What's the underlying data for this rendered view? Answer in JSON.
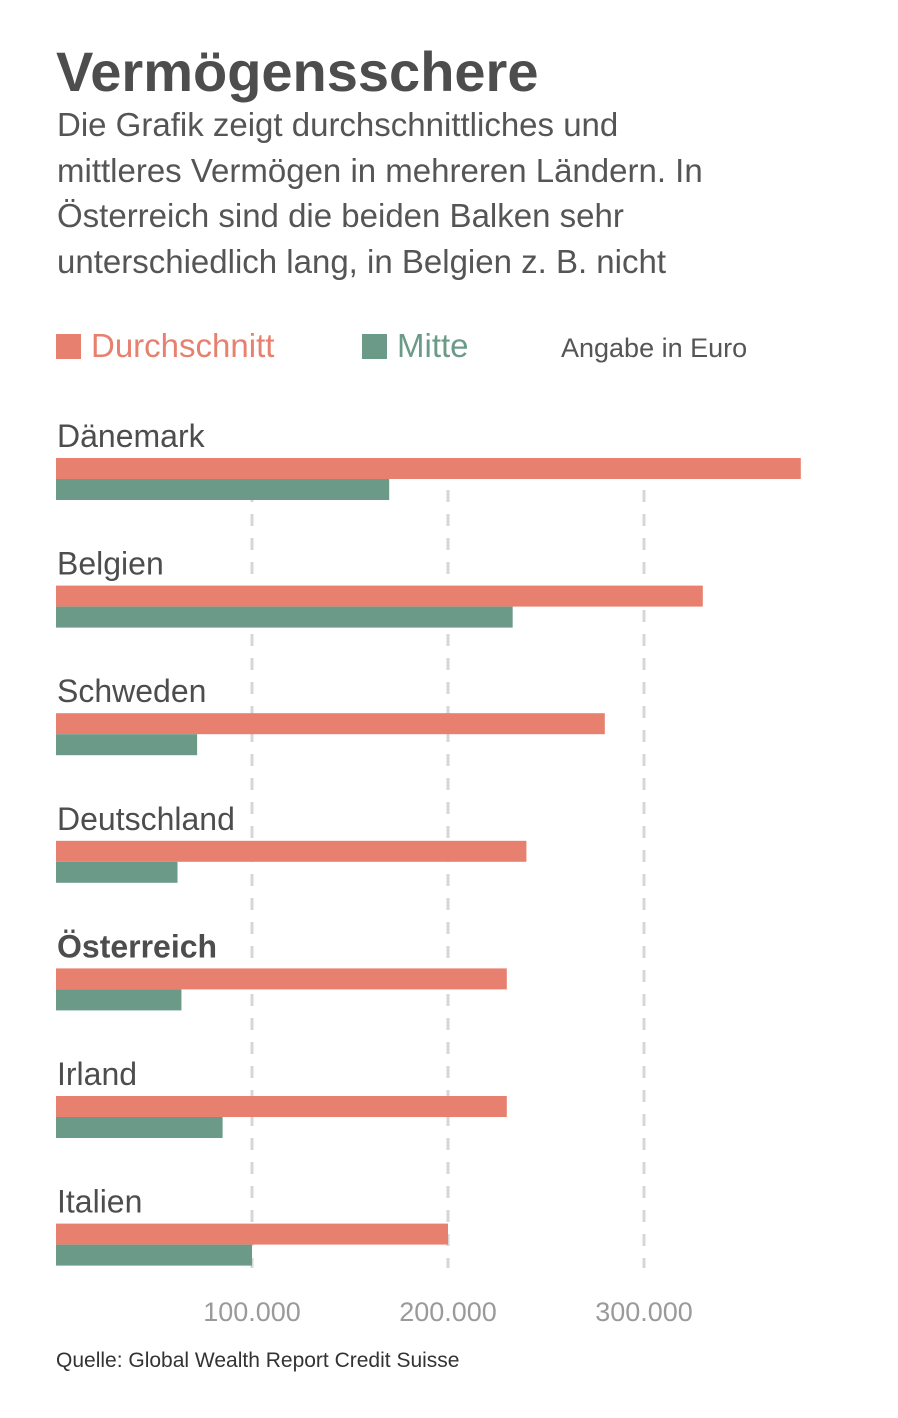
{
  "title": "Vermögensschere",
  "subtitle_lines": [
    "Die Grafik zeigt durchschnittliches und",
    "mittleres Vermögen in mehreren Ländern. In",
    "Österreich sind die beiden Balken sehr",
    "unterschiedlich lang, in Belgien z. B. nicht"
  ],
  "legend": {
    "items": [
      {
        "label": "Durchschnitt",
        "color": "#e8806f"
      },
      {
        "label": "Mitte",
        "color": "#6b9b88"
      }
    ],
    "unit_note": "Angabe in Euro"
  },
  "source": "Quelle: Global Wealth Report Credit Suisse",
  "chart_data": {
    "type": "bar",
    "orientation": "horizontal",
    "categories": [
      "Dänemark",
      "Belgien",
      "Schweden",
      "Deutschland",
      "Österreich",
      "Irland",
      "Italien"
    ],
    "highlighted_category": "Österreich",
    "series": [
      {
        "name": "Durchschnitt",
        "color": "#e8806f",
        "values": [
          380000,
          330000,
          280000,
          240000,
          230000,
          230000,
          200000
        ]
      },
      {
        "name": "Mitte",
        "color": "#6b9b88",
        "values": [
          170000,
          233000,
          72000,
          62000,
          64000,
          85000,
          100000
        ]
      }
    ],
    "xlim": [
      0,
      400000
    ],
    "x_ticks": [
      100000,
      200000,
      300000
    ],
    "x_tick_labels": [
      "100.000",
      "200.000",
      "300.000"
    ],
    "grid": "vertical dashed",
    "legend_position": "top"
  }
}
